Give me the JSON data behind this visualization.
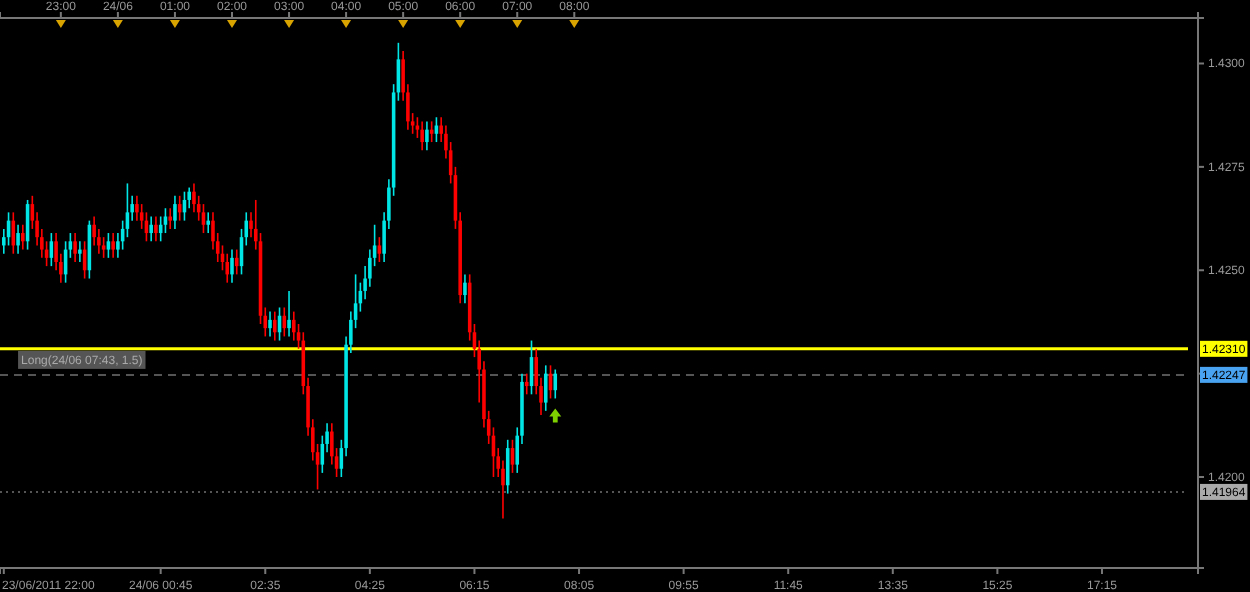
{
  "chart_data": {
    "type": "candlestick",
    "x": [
      "2011-06-23T22:00",
      "2011-06-23T22:05",
      "2011-06-23T22:10",
      "2011-06-23T22:15",
      "2011-06-23T22:20",
      "2011-06-23T22:25",
      "2011-06-23T22:30",
      "2011-06-23T22:35",
      "2011-06-23T22:40",
      "2011-06-23T22:45",
      "2011-06-23T22:50",
      "2011-06-23T22:55",
      "2011-06-23T23:00",
      "2011-06-23T23:05",
      "2011-06-23T23:10",
      "2011-06-23T23:15",
      "2011-06-23T23:20",
      "2011-06-23T23:25",
      "2011-06-23T23:30",
      "2011-06-23T23:35",
      "2011-06-23T23:40",
      "2011-06-23T23:45",
      "2011-06-23T23:50",
      "2011-06-23T23:55",
      "2011-06-24T00:00",
      "2011-06-24T00:05",
      "2011-06-24T00:10",
      "2011-06-24T00:15",
      "2011-06-24T00:20",
      "2011-06-24T00:25",
      "2011-06-24T00:30",
      "2011-06-24T00:35",
      "2011-06-24T00:40",
      "2011-06-24T00:45",
      "2011-06-24T00:50",
      "2011-06-24T00:55",
      "2011-06-24T01:00",
      "2011-06-24T01:05",
      "2011-06-24T01:10",
      "2011-06-24T01:15",
      "2011-06-24T01:20",
      "2011-06-24T01:25",
      "2011-06-24T01:30",
      "2011-06-24T01:35",
      "2011-06-24T01:40",
      "2011-06-24T01:45",
      "2011-06-24T01:50",
      "2011-06-24T01:55",
      "2011-06-24T02:00",
      "2011-06-24T02:05",
      "2011-06-24T02:10",
      "2011-06-24T02:15",
      "2011-06-24T02:20",
      "2011-06-24T02:25",
      "2011-06-24T02:30",
      "2011-06-24T02:35",
      "2011-06-24T02:40",
      "2011-06-24T02:45",
      "2011-06-24T02:50",
      "2011-06-24T02:55",
      "2011-06-24T03:00",
      "2011-06-24T03:05",
      "2011-06-24T03:10",
      "2011-06-24T03:15",
      "2011-06-24T03:20",
      "2011-06-24T03:25",
      "2011-06-24T03:30",
      "2011-06-24T03:35",
      "2011-06-24T03:40",
      "2011-06-24T03:45",
      "2011-06-24T03:50",
      "2011-06-24T03:55",
      "2011-06-24T04:00",
      "2011-06-24T04:05",
      "2011-06-24T04:10",
      "2011-06-24T04:15",
      "2011-06-24T04:20",
      "2011-06-24T04:25",
      "2011-06-24T04:30",
      "2011-06-24T04:35",
      "2011-06-24T04:40",
      "2011-06-24T04:45",
      "2011-06-24T04:50",
      "2011-06-24T04:55",
      "2011-06-24T05:00",
      "2011-06-24T05:05",
      "2011-06-24T05:10",
      "2011-06-24T05:15",
      "2011-06-24T05:20",
      "2011-06-24T05:25",
      "2011-06-24T05:30",
      "2011-06-24T05:35",
      "2011-06-24T05:40",
      "2011-06-24T05:45",
      "2011-06-24T05:50",
      "2011-06-24T05:55",
      "2011-06-24T06:00",
      "2011-06-24T06:05",
      "2011-06-24T06:10",
      "2011-06-24T06:15",
      "2011-06-24T06:20",
      "2011-06-24T06:25",
      "2011-06-24T06:30",
      "2011-06-24T06:35",
      "2011-06-24T06:40",
      "2011-06-24T06:45",
      "2011-06-24T06:50",
      "2011-06-24T06:55",
      "2011-06-24T07:00",
      "2011-06-24T07:05",
      "2011-06-24T07:10",
      "2011-06-24T07:15",
      "2011-06-24T07:20",
      "2011-06-24T07:25",
      "2011-06-24T07:30",
      "2011-06-24T07:35",
      "2011-06-24T07:40"
    ],
    "ohlc": [
      [
        1.4256,
        1.426,
        1.4254,
        1.4258
      ],
      [
        1.4258,
        1.4264,
        1.4256,
        1.4262
      ],
      [
        1.4262,
        1.4264,
        1.4254,
        1.4256
      ],
      [
        1.4256,
        1.4261,
        1.4254,
        1.4259
      ],
      [
        1.4259,
        1.4261,
        1.4255,
        1.4257
      ],
      [
        1.4257,
        1.4267,
        1.4255,
        1.4266
      ],
      [
        1.4266,
        1.4268,
        1.426,
        1.4262
      ],
      [
        1.4262,
        1.4264,
        1.4256,
        1.4258
      ],
      [
        1.4258,
        1.426,
        1.4253,
        1.4255
      ],
      [
        1.4255,
        1.4257,
        1.4251,
        1.4253
      ],
      [
        1.4253,
        1.4259,
        1.4251,
        1.4257
      ],
      [
        1.4257,
        1.4259,
        1.425,
        1.4252
      ],
      [
        1.4252,
        1.4254,
        1.4247,
        1.4249
      ],
      [
        1.4249,
        1.4257,
        1.4247,
        1.4255
      ],
      [
        1.4255,
        1.4259,
        1.4253,
        1.4257
      ],
      [
        1.4257,
        1.4259,
        1.4252,
        1.4254
      ],
      [
        1.4254,
        1.4257,
        1.4252,
        1.4255
      ],
      [
        1.4255,
        1.4257,
        1.4248,
        1.425
      ],
      [
        1.425,
        1.4262,
        1.4248,
        1.4261
      ],
      [
        1.4261,
        1.4263,
        1.4256,
        1.4258
      ],
      [
        1.4258,
        1.426,
        1.4254,
        1.4256
      ],
      [
        1.4256,
        1.4258,
        1.4253,
        1.4255
      ],
      [
        1.4255,
        1.4259,
        1.4253,
        1.4257
      ],
      [
        1.4257,
        1.4259,
        1.4253,
        1.4255
      ],
      [
        1.4255,
        1.4259,
        1.4253,
        1.4257
      ],
      [
        1.4257,
        1.4262,
        1.4255,
        1.426
      ],
      [
        1.426,
        1.4271,
        1.4258,
        1.4264
      ],
      [
        1.4264,
        1.4268,
        1.4262,
        1.4266
      ],
      [
        1.4266,
        1.4268,
        1.4262,
        1.4264
      ],
      [
        1.4264,
        1.4266,
        1.426,
        1.4262
      ],
      [
        1.4262,
        1.4264,
        1.4257,
        1.4259
      ],
      [
        1.4259,
        1.4263,
        1.4257,
        1.4261
      ],
      [
        1.4261,
        1.4263,
        1.4257,
        1.4259
      ],
      [
        1.4259,
        1.4263,
        1.4257,
        1.4261
      ],
      [
        1.4261,
        1.4265,
        1.4259,
        1.4263
      ],
      [
        1.4263,
        1.4265,
        1.426,
        1.4262
      ],
      [
        1.4262,
        1.4268,
        1.426,
        1.4266
      ],
      [
        1.4266,
        1.4268,
        1.4262,
        1.4264
      ],
      [
        1.4264,
        1.4269,
        1.4262,
        1.4267
      ],
      [
        1.4267,
        1.427,
        1.4265,
        1.4269
      ],
      [
        1.4269,
        1.4271,
        1.4264,
        1.4266
      ],
      [
        1.4266,
        1.4268,
        1.4262,
        1.4264
      ],
      [
        1.4264,
        1.4266,
        1.4259,
        1.4261
      ],
      [
        1.4261,
        1.4264,
        1.4259,
        1.4262
      ],
      [
        1.4262,
        1.4264,
        1.4255,
        1.4257
      ],
      [
        1.4257,
        1.4259,
        1.4252,
        1.4254
      ],
      [
        1.4254,
        1.4256,
        1.425,
        1.4252
      ],
      [
        1.4252,
        1.4254,
        1.4247,
        1.4249
      ],
      [
        1.4249,
        1.4255,
        1.4247,
        1.4253
      ],
      [
        1.4253,
        1.4255,
        1.4249,
        1.4251
      ],
      [
        1.4251,
        1.426,
        1.4249,
        1.4258
      ],
      [
        1.4258,
        1.4264,
        1.4256,
        1.4262
      ],
      [
        1.4262,
        1.4264,
        1.4258,
        1.426
      ],
      [
        1.426,
        1.4267,
        1.4255,
        1.4257
      ],
      [
        1.4257,
        1.4259,
        1.4237,
        1.4239
      ],
      [
        1.4239,
        1.4241,
        1.4234,
        1.4236
      ],
      [
        1.4236,
        1.424,
        1.4234,
        1.4238
      ],
      [
        1.4238,
        1.424,
        1.4233,
        1.4235
      ],
      [
        1.4235,
        1.4241,
        1.4233,
        1.4239
      ],
      [
        1.4239,
        1.4241,
        1.4234,
        1.4236
      ],
      [
        1.4236,
        1.4245,
        1.4234,
        1.4238
      ],
      [
        1.4238,
        1.424,
        1.4233,
        1.4235
      ],
      [
        1.4235,
        1.4237,
        1.4231,
        1.4233
      ],
      [
        1.4233,
        1.4235,
        1.422,
        1.4222
      ],
      [
        1.4222,
        1.4224,
        1.421,
        1.4212
      ],
      [
        1.4212,
        1.4214,
        1.4204,
        1.4206
      ],
      [
        1.4206,
        1.4208,
        1.4197,
        1.4203
      ],
      [
        1.4203,
        1.421,
        1.4201,
        1.4208
      ],
      [
        1.4208,
        1.4213,
        1.4206,
        1.4211
      ],
      [
        1.4211,
        1.4213,
        1.4203,
        1.4205
      ],
      [
        1.4205,
        1.4207,
        1.42,
        1.4202
      ],
      [
        1.4202,
        1.4209,
        1.42,
        1.4207
      ],
      [
        1.4207,
        1.4234,
        1.4205,
        1.4232
      ],
      [
        1.4232,
        1.424,
        1.423,
        1.4238
      ],
      [
        1.4238,
        1.4249,
        1.4236,
        1.4242
      ],
      [
        1.4242,
        1.4247,
        1.424,
        1.4245
      ],
      [
        1.4245,
        1.4251,
        1.4243,
        1.4248
      ],
      [
        1.4248,
        1.4255,
        1.4246,
        1.4253
      ],
      [
        1.4253,
        1.4261,
        1.4251,
        1.4256
      ],
      [
        1.4256,
        1.4258,
        1.4252,
        1.4254
      ],
      [
        1.4254,
        1.4264,
        1.4252,
        1.4262
      ],
      [
        1.4262,
        1.4272,
        1.426,
        1.427
      ],
      [
        1.427,
        1.4295,
        1.4268,
        1.4293
      ],
      [
        1.4293,
        1.4305,
        1.4291,
        1.4301
      ],
      [
        1.4301,
        1.4303,
        1.4291,
        1.4293
      ],
      [
        1.4293,
        1.4295,
        1.4284,
        1.4286
      ],
      [
        1.4286,
        1.4288,
        1.4283,
        1.4285
      ],
      [
        1.4285,
        1.4287,
        1.4282,
        1.4284
      ],
      [
        1.4284,
        1.4286,
        1.4279,
        1.4281
      ],
      [
        1.4281,
        1.4286,
        1.4279,
        1.4284
      ],
      [
        1.4284,
        1.4286,
        1.4281,
        1.4283
      ],
      [
        1.4283,
        1.4287,
        1.4281,
        1.4285
      ],
      [
        1.4285,
        1.4287,
        1.4281,
        1.4283
      ],
      [
        1.4283,
        1.4285,
        1.4277,
        1.4279
      ],
      [
        1.4279,
        1.4281,
        1.4271,
        1.4273
      ],
      [
        1.4273,
        1.4275,
        1.426,
        1.4262
      ],
      [
        1.4262,
        1.4264,
        1.4242,
        1.4244
      ],
      [
        1.4244,
        1.4249,
        1.4242,
        1.4247
      ],
      [
        1.4247,
        1.4249,
        1.4233,
        1.4235
      ],
      [
        1.4235,
        1.4237,
        1.4229,
        1.4231
      ],
      [
        1.4231,
        1.4233,
        1.4218,
        1.4226
      ],
      [
        1.4226,
        1.4228,
        1.4212,
        1.4214
      ],
      [
        1.4214,
        1.4216,
        1.4208,
        1.421
      ],
      [
        1.421,
        1.4212,
        1.42,
        1.4205
      ],
      [
        1.4205,
        1.4207,
        1.42,
        1.4202
      ],
      [
        1.4202,
        1.4204,
        1.419,
        1.4198
      ],
      [
        1.4198,
        1.4209,
        1.4196,
        1.4207
      ],
      [
        1.4207,
        1.4209,
        1.4201,
        1.4203
      ],
      [
        1.4203,
        1.4212,
        1.4201,
        1.421
      ],
      [
        1.421,
        1.4225,
        1.4208,
        1.4223
      ],
      [
        1.4223,
        1.4225,
        1.422,
        1.4222
      ],
      [
        1.4222,
        1.4233,
        1.422,
        1.4229
      ],
      [
        1.4229,
        1.4231,
        1.422,
        1.4222
      ],
      [
        1.4222,
        1.4224,
        1.4215,
        1.4218
      ],
      [
        1.4218,
        1.4227,
        1.4216,
        1.4225
      ],
      [
        1.4225,
        1.4227,
        1.4219,
        1.4221
      ],
      [
        1.4221,
        1.4226,
        1.4219,
        1.4225
      ]
    ],
    "colors": [
      "#00e5e5",
      "#00e5e5",
      "#ff0000",
      "#00e5e5",
      "#ff0000",
      "#00e5e5",
      "#ff0000",
      "#ff0000",
      "#ff0000",
      "#ff0000",
      "#00e5e5",
      "#ff0000",
      "#ff0000",
      "#00e5e5",
      "#00e5e5",
      "#ff0000",
      "#00e5e5",
      "#ff0000",
      "#00e5e5",
      "#ff0000",
      "#ff0000",
      "#ff0000",
      "#00e5e5",
      "#ff0000",
      "#00e5e5",
      "#00e5e5",
      "#00e5e5",
      "#00e5e5",
      "#ff0000",
      "#ff0000",
      "#ff0000",
      "#00e5e5",
      "#ff0000",
      "#00e5e5",
      "#00e5e5",
      "#ff0000",
      "#00e5e5",
      "#ff0000",
      "#00e5e5",
      "#00e5e5",
      "#ff0000",
      "#ff0000",
      "#ff0000",
      "#00e5e5",
      "#ff0000",
      "#ff0000",
      "#ff0000",
      "#ff0000",
      "#00e5e5",
      "#ff0000",
      "#00e5e5",
      "#00e5e5",
      "#ff0000",
      "#ff0000",
      "#ff0000",
      "#ff0000",
      "#00e5e5",
      "#ff0000",
      "#00e5e5",
      "#ff0000",
      "#00e5e5",
      "#ff0000",
      "#ff0000",
      "#ff0000",
      "#ff0000",
      "#ff0000",
      "#ff0000",
      "#00e5e5",
      "#00e5e5",
      "#ff0000",
      "#ff0000",
      "#00e5e5",
      "#00e5e5",
      "#00e5e5",
      "#00e5e5",
      "#00e5e5",
      "#00e5e5",
      "#00e5e5",
      "#00e5e5",
      "#ff0000",
      "#00e5e5",
      "#00e5e5",
      "#00e5e5",
      "#00e5e5",
      "#ff0000",
      "#ff0000",
      "#ff0000",
      "#ff0000",
      "#ff0000",
      "#00e5e5",
      "#ff0000",
      "#00e5e5",
      "#ff0000",
      "#ff0000",
      "#ff0000",
      "#ff0000",
      "#ff0000",
      "#00e5e5",
      "#ff0000",
      "#ff0000",
      "#ff0000",
      "#ff0000",
      "#ff0000",
      "#ff0000",
      "#ff0000",
      "#ff0000",
      "#00e5e5",
      "#ff0000",
      "#00e5e5",
      "#00e5e5",
      "#ff0000",
      "#00e5e5",
      "#ff0000",
      "#ff0000",
      "#00e5e5",
      "#ff0000",
      "#00e5e5"
    ],
    "xlim": [
      "2011-06-23T21:56",
      "2011-06-24T18:56"
    ],
    "xticks": [
      {
        "value": "2011-06-23T22:00",
        "label": "23/06/2011 22:00"
      },
      {
        "value": "2011-06-24T00:45",
        "label": "24/06 00:45"
      },
      {
        "value": "2011-06-24T02:35",
        "label": "02:35"
      },
      {
        "value": "2011-06-24T04:25",
        "label": "04:25"
      },
      {
        "value": "2011-06-24T06:15",
        "label": "06:15"
      },
      {
        "value": "2011-06-24T08:05",
        "label": "08:05"
      },
      {
        "value": "2011-06-24T09:55",
        "label": "09:55"
      },
      {
        "value": "2011-06-24T11:45",
        "label": "11:45"
      },
      {
        "value": "2011-06-24T13:35",
        "label": "13:35"
      },
      {
        "value": "2011-06-24T15:25",
        "label": "15:25"
      },
      {
        "value": "2011-06-24T17:15",
        "label": "17:15"
      }
    ],
    "x2lim": [
      "2011-06-23T21:56",
      "2011-06-24T18:56"
    ],
    "x2ticks": [
      {
        "value": "2011-06-23T23:00",
        "label": "23:00"
      },
      {
        "value": "2011-06-24T00:00",
        "label": "24/06"
      },
      {
        "value": "2011-06-24T01:00",
        "label": "01:00"
      },
      {
        "value": "2011-06-24T02:00",
        "label": "02:00"
      },
      {
        "value": "2011-06-24T03:00",
        "label": "03:00"
      },
      {
        "value": "2011-06-24T04:00",
        "label": "04:00"
      },
      {
        "value": "2011-06-24T05:00",
        "label": "05:00"
      },
      {
        "value": "2011-06-24T06:00",
        "label": "06:00"
      },
      {
        "value": "2011-06-24T07:00",
        "label": "07:00"
      },
      {
        "value": "2011-06-24T08:00",
        "label": "08:00"
      }
    ],
    "ylim": [
      1.4178,
      1.4311
    ],
    "yticks": [
      {
        "value": 1.42,
        "label": "1.4200"
      },
      {
        "value": 1.4225,
        "label": null
      },
      {
        "value": 1.425,
        "label": "1.4250"
      },
      {
        "value": 1.4275,
        "label": "1.4275"
      },
      {
        "value": 1.43,
        "label": "1.4300"
      }
    ],
    "ref_lines": [
      {
        "axis": "y",
        "value": 1.4231,
        "label": "1.42310",
        "color": "#ffff00",
        "line_style": "solid"
      },
      {
        "axis": "y",
        "value": 1.42247,
        "label": "1.42247",
        "color": "#555555",
        "line_style": "dashed"
      },
      {
        "axis": "y",
        "value": 1.41964,
        "label": "1.41964",
        "color": "#555555",
        "line_style": "dotted"
      }
    ],
    "annotations": [
      {
        "text": "Long(24/06 07:43, 1.5)",
        "x": "2011-06-23T22:15",
        "y": 1.42247
      }
    ],
    "grid": false
  }
}
